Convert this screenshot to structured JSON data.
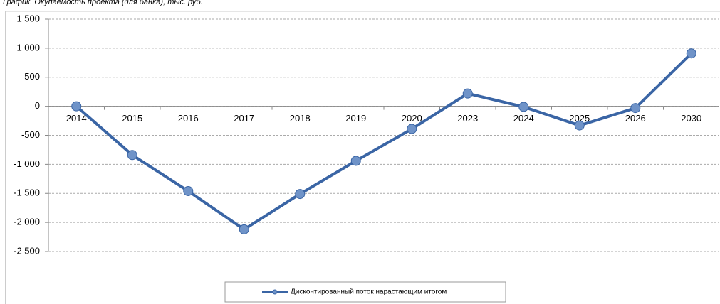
{
  "chart_data": {
    "type": "line",
    "title": "График. Окупаемость проекта (для банка), тыс. руб.",
    "categories": [
      "2014",
      "2015",
      "2016",
      "2017",
      "2018",
      "2019",
      "2020",
      "2023",
      "2024",
      "2025",
      "2026",
      "2030"
    ],
    "series": [
      {
        "name": "Дисконтированный поток нарастающим итогом",
        "color": "#3a65a5",
        "values": [
          0,
          -840,
          -1460,
          -2120,
          -1510,
          -940,
          -390,
          220,
          -10,
          -330,
          -30,
          910
        ]
      }
    ],
    "ylim": [
      -2500,
      1500
    ],
    "yticks": [
      {
        "value": 1500,
        "label": "1 500"
      },
      {
        "value": 1000,
        "label": "1 000"
      },
      500,
      0,
      -500,
      {
        "value": -1000,
        "label": "-1 000"
      },
      {
        "value": -1500,
        "label": "-1 500"
      },
      {
        "value": -2000,
        "label": "-2 000"
      },
      {
        "value": -2500,
        "label": "-2 500"
      }
    ],
    "grid": true
  }
}
